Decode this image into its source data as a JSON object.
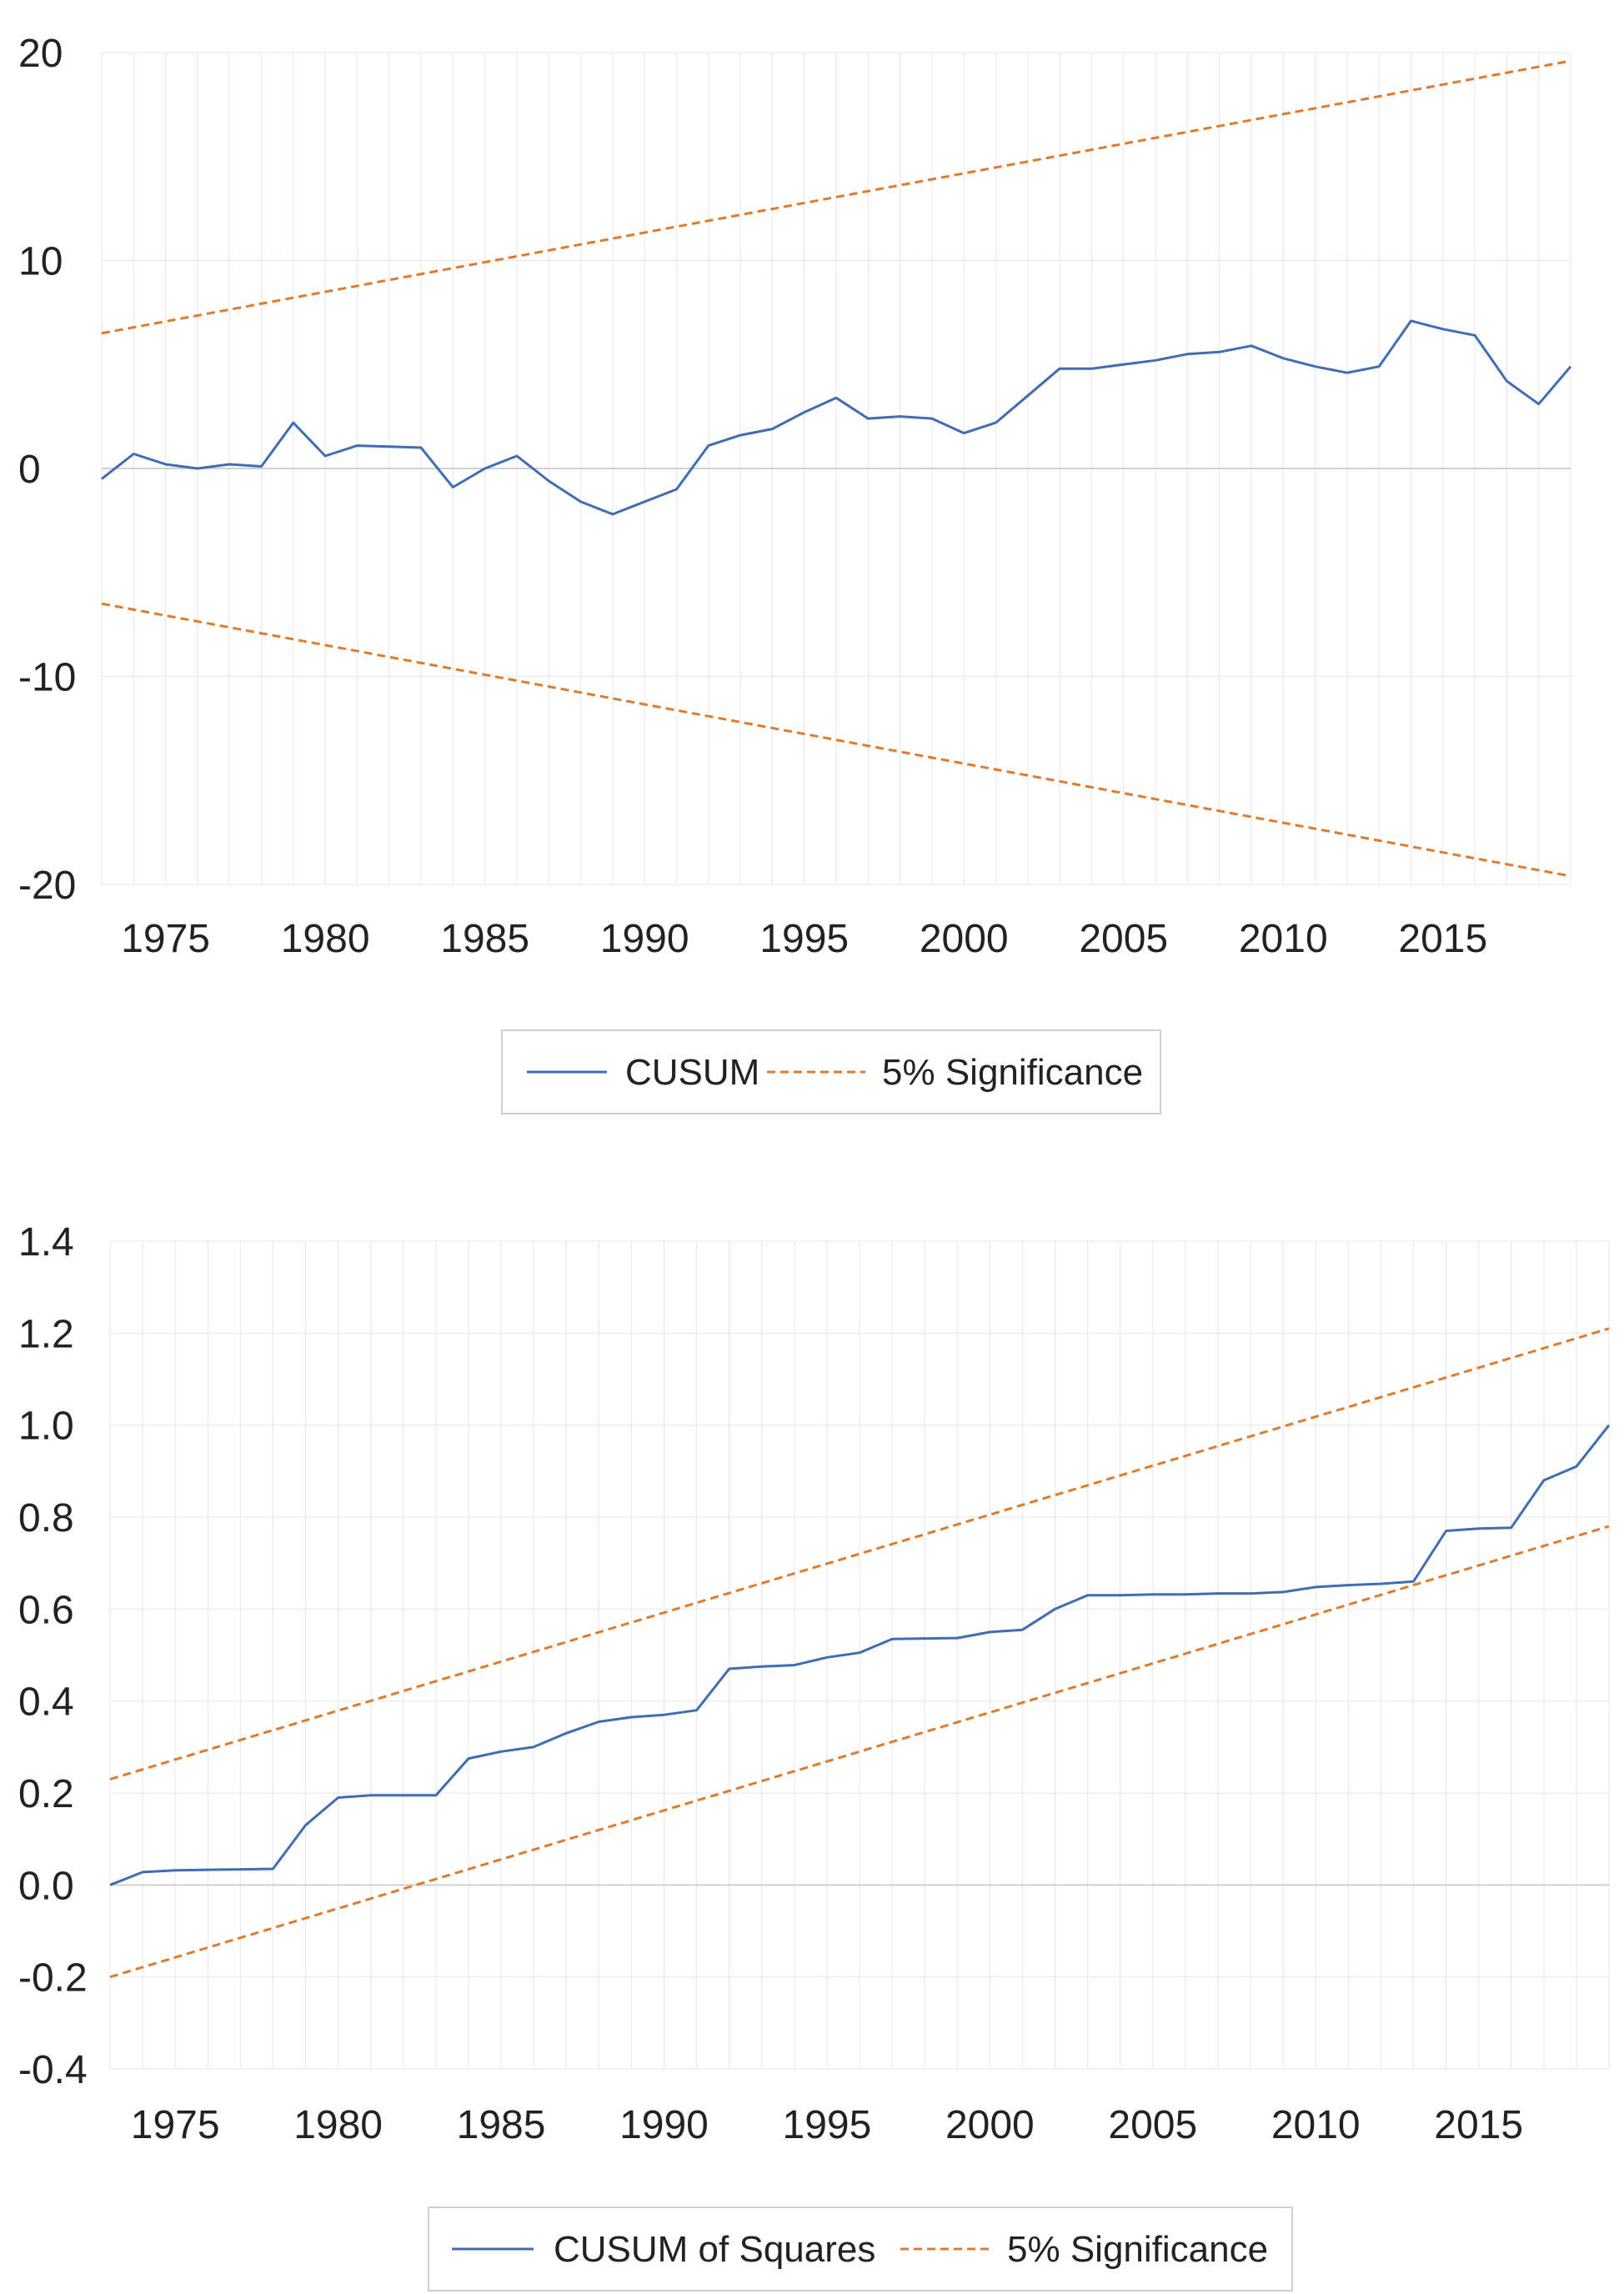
{
  "colors": {
    "cusum": "#3f6cb2",
    "bound": "#e07b2d",
    "grid": "#e9e9e9",
    "zero": "#d0d0d0"
  },
  "chart_data": [
    {
      "type": "line",
      "title": "",
      "xlabel": "",
      "ylabel": "",
      "xlim": [
        1973,
        2019
      ],
      "ylim": [
        -20,
        20
      ],
      "y_ticks": [
        "20",
        "10",
        "0",
        "-10",
        "-20"
      ],
      "y_tick_values": [
        20,
        10,
        0,
        -10,
        -20
      ],
      "x_ticks": [
        "1975",
        "1980",
        "1985",
        "1990",
        "1995",
        "2000",
        "2005",
        "2010",
        "2015"
      ],
      "x_tick_values": [
        1975,
        1980,
        1985,
        1990,
        1995,
        2000,
        2005,
        2010,
        2015
      ],
      "grid": true,
      "legend_position": "bottom",
      "x": [
        1973,
        1974,
        1975,
        1976,
        1977,
        1978,
        1979,
        1980,
        1981,
        1982,
        1983,
        1984,
        1985,
        1986,
        1987,
        1988,
        1989,
        1990,
        1991,
        1992,
        1993,
        1994,
        1995,
        1996,
        1997,
        1998,
        1999,
        2000,
        2001,
        2002,
        2003,
        2004,
        2005,
        2006,
        2007,
        2008,
        2009,
        2010,
        2011,
        2012,
        2013,
        2014,
        2015,
        2016,
        2017,
        2018,
        2019
      ],
      "series": [
        {
          "name": "CUSUM",
          "style": "solid",
          "values": [
            -0.5,
            0.7,
            0.2,
            0.0,
            0.2,
            0.1,
            2.2,
            0.6,
            1.1,
            1.05,
            1.0,
            -0.9,
            0.0,
            0.6,
            -0.6,
            -1.6,
            -2.2,
            -1.6,
            -1.0,
            1.1,
            1.6,
            1.9,
            2.7,
            3.4,
            2.4,
            2.5,
            2.4,
            1.7,
            2.2,
            3.5,
            4.8,
            4.8,
            5.0,
            5.2,
            5.5,
            5.6,
            5.9,
            5.3,
            4.9,
            4.6,
            4.9,
            7.1,
            6.7,
            6.4,
            4.2,
            3.1,
            4.9
          ]
        },
        {
          "name": "5% Significance",
          "style": "dashed",
          "x": [
            1973,
            2019
          ],
          "values": [
            6.5,
            19.6
          ]
        },
        {
          "name": "5% Significance",
          "style": "dashed",
          "x": [
            1973,
            2019
          ],
          "values": [
            -6.5,
            -19.6
          ]
        }
      ]
    },
    {
      "type": "line",
      "title": "",
      "xlabel": "",
      "ylabel": "",
      "xlim": [
        1973,
        2019
      ],
      "ylim": [
        -0.4,
        1.4
      ],
      "y_ticks": [
        "1.4",
        "1.2",
        "1.0",
        "0.8",
        "0.6",
        "0.4",
        "0.2",
        "0.0",
        "-0.2",
        "-0.4"
      ],
      "y_tick_values": [
        1.4,
        1.2,
        1.0,
        0.8,
        0.6,
        0.4,
        0.2,
        0.0,
        -0.2,
        -0.4
      ],
      "x_ticks": [
        "1975",
        "1980",
        "1985",
        "1990",
        "1995",
        "2000",
        "2005",
        "2010",
        "2015"
      ],
      "x_tick_values": [
        1975,
        1980,
        1985,
        1990,
        1995,
        2000,
        2005,
        2010,
        2015
      ],
      "grid": true,
      "legend_position": "bottom",
      "x": [
        1973,
        1974,
        1975,
        1976,
        1977,
        1978,
        1979,
        1980,
        1981,
        1982,
        1983,
        1984,
        1985,
        1986,
        1987,
        1988,
        1989,
        1990,
        1991,
        1992,
        1993,
        1994,
        1995,
        1996,
        1997,
        1998,
        1999,
        2000,
        2001,
        2002,
        2003,
        2004,
        2005,
        2006,
        2007,
        2008,
        2009,
        2010,
        2011,
        2012,
        2013,
        2014,
        2015,
        2016,
        2017,
        2018,
        2019
      ],
      "series": [
        {
          "name": "CUSUM of Squares",
          "style": "solid",
          "values": [
            0.0,
            0.028,
            0.032,
            0.033,
            0.034,
            0.035,
            0.13,
            0.19,
            0.195,
            0.195,
            0.195,
            0.275,
            0.29,
            0.3,
            0.33,
            0.355,
            0.365,
            0.37,
            0.38,
            0.47,
            0.475,
            0.478,
            0.495,
            0.505,
            0.535,
            0.536,
            0.537,
            0.55,
            0.555,
            0.6,
            0.63,
            0.63,
            0.632,
            0.632,
            0.634,
            0.634,
            0.637,
            0.648,
            0.652,
            0.655,
            0.66,
            0.77,
            0.775,
            0.777,
            0.88,
            0.91,
            1.0
          ]
        },
        {
          "name": "5% Significance",
          "style": "dashed",
          "x": [
            1973,
            2019
          ],
          "values": [
            0.23,
            1.21
          ]
        },
        {
          "name": "5% Significance",
          "style": "dashed",
          "x": [
            1973,
            2019
          ],
          "values": [
            -0.2,
            0.78
          ]
        }
      ]
    }
  ]
}
